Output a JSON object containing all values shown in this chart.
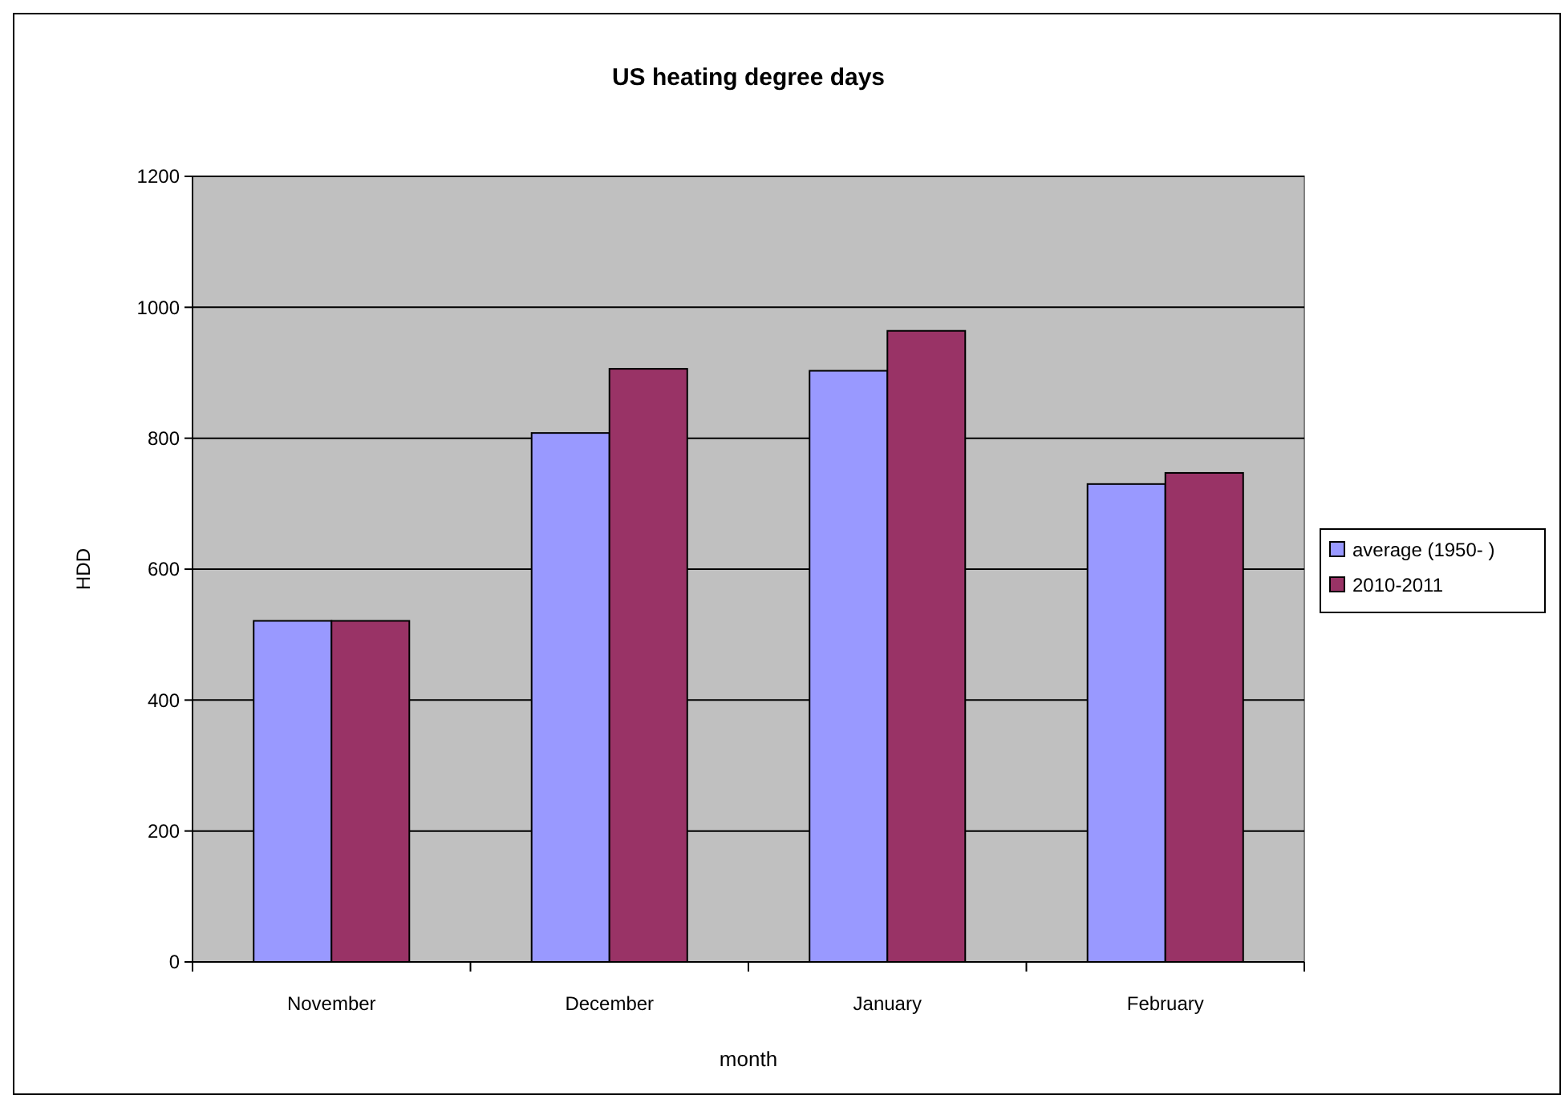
{
  "chart_data": {
    "type": "bar",
    "title": "US heating degree days",
    "xlabel": "month",
    "ylabel": "HDD",
    "categories": [
      "November",
      "December",
      "January",
      "February"
    ],
    "series": [
      {
        "name": "average (1950- )",
        "color": "#9999ff",
        "values": [
          521,
          808,
          903,
          730
        ]
      },
      {
        "name": "2010-2011",
        "color": "#993366",
        "values": [
          521,
          906,
          964,
          747
        ]
      }
    ],
    "ylim": [
      0,
      1200
    ],
    "yticks": [
      0,
      200,
      400,
      600,
      800,
      1000,
      1200
    ],
    "grid": "y",
    "legend": "right"
  }
}
